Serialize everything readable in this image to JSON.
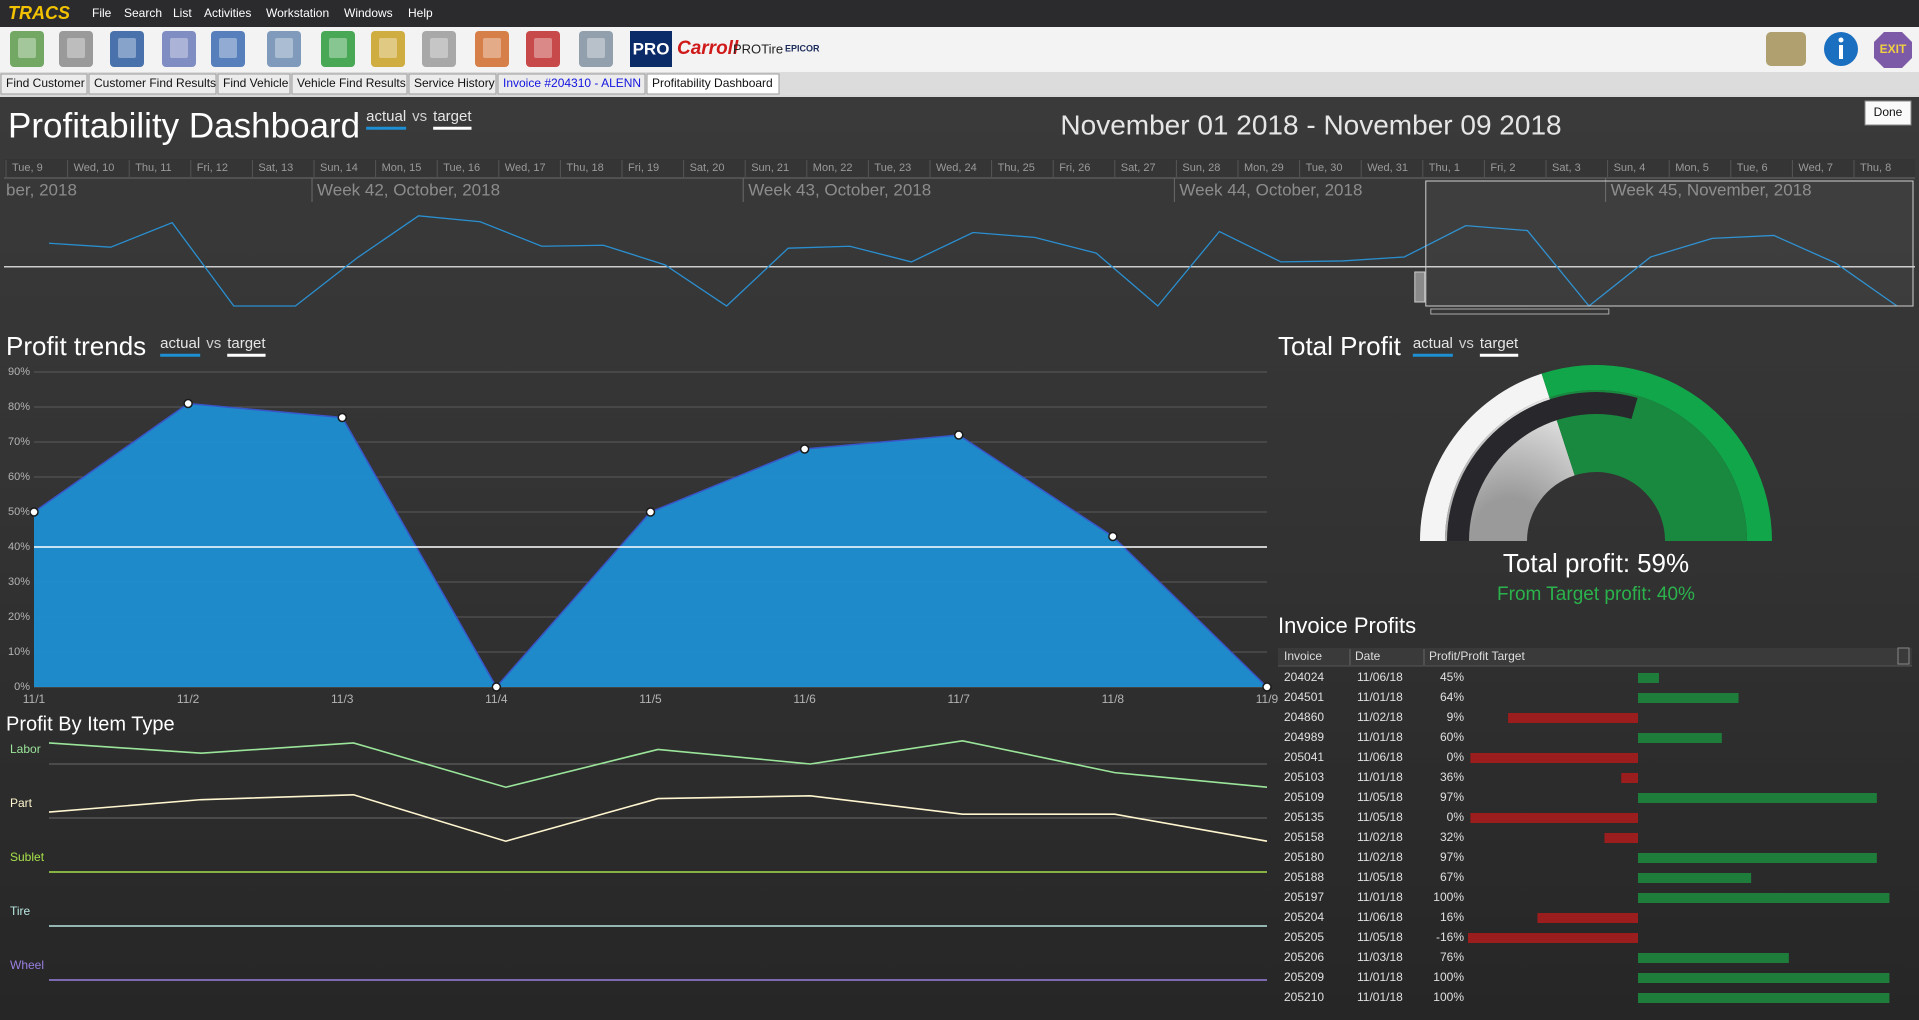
{
  "app": {
    "logo": "TRACS",
    "menu": [
      "File",
      "Search",
      "List",
      "Activities",
      "Workstation",
      "Windows",
      "Help"
    ],
    "toolbar_brands": [
      "PRO",
      "Carroll",
      "PROTire",
      "EPICOR"
    ],
    "exit": "EXIT",
    "tabs": [
      "Find Customer",
      "Customer Find Results",
      "Find Vehicle",
      "Vehicle Find Results",
      "Service History",
      "Invoice #204310 - ALENN",
      "Profitability Dashboard"
    ],
    "done": "Done"
  },
  "dashboard": {
    "title": "Profitability Dashboard",
    "legend": {
      "actual": "actual",
      "vs": "vs",
      "target": "target"
    },
    "date_range": "November 01 2018 - November 09 2018"
  },
  "timeline": {
    "days": [
      "Tue, 9",
      "Wed, 10",
      "Thu, 11",
      "Fri, 12",
      "Sat, 13",
      "Sun, 14",
      "Mon, 15",
      "Tue, 16",
      "Wed, 17",
      "Thu, 18",
      "Fri, 19",
      "Sat, 20",
      "Sun, 21",
      "Mon, 22",
      "Tue, 23",
      "Wed, 24",
      "Thu, 25",
      "Fri, 26",
      "Sat, 27",
      "Sun, 28",
      "Mon, 29",
      "Tue, 30",
      "Wed, 31",
      "Thu, 1",
      "Fri, 2",
      "Sat, 3",
      "Sun, 4",
      "Mon, 5",
      "Tue, 6",
      "Wed, 7",
      "Thu, 8"
    ],
    "weeks": [
      "ber, 2018",
      "Week 42, October, 2018",
      "Week 43, October, 2018",
      "Week 44, October, 2018",
      "Week 45, November, 2018"
    ],
    "values": [
      64,
      60,
      85,
      0,
      0,
      49,
      92,
      86,
      61,
      62,
      42,
      0,
      59,
      61,
      45,
      75,
      70,
      54,
      0,
      76,
      45,
      46,
      50,
      82,
      77,
      0,
      50,
      69,
      72,
      44,
      0
    ],
    "target": 40,
    "ylim": [
      0,
      100
    ],
    "color": "#2a8fd0"
  },
  "profit_trends": {
    "type": "area",
    "title": "Profit trends",
    "categories": [
      "11/1",
      "11/2",
      "11/3",
      "11/4",
      "11/5",
      "11/6",
      "11/7",
      "11/8",
      "11/9"
    ],
    "values": [
      50,
      81,
      77,
      0,
      50,
      68,
      72,
      43,
      0
    ],
    "target": 40,
    "ylim": [
      0,
      90
    ],
    "yticks": [
      {
        "value": 0,
        "label": "0%"
      },
      {
        "value": 10,
        "label": "10%"
      },
      {
        "value": 20,
        "label": "20%"
      },
      {
        "value": 30,
        "label": "30%"
      },
      {
        "value": 40,
        "label": "40%"
      },
      {
        "value": 50,
        "label": "50%"
      },
      {
        "value": 60,
        "label": "60%"
      },
      {
        "value": 70,
        "label": "70%"
      },
      {
        "value": 80,
        "label": "80%"
      },
      {
        "value": 90,
        "label": "90%"
      }
    ],
    "color": "#1e8fd2",
    "grid": true
  },
  "total_profit": {
    "type": "gauge",
    "title": "Total Profit",
    "label": "Total profit:",
    "value": 59,
    "value_label": "59%",
    "target_label": "From Target profit:",
    "target": 40,
    "target_value_label": "40%",
    "range": [
      0,
      100
    ]
  },
  "invoice_profits": {
    "title": "Invoice Profits",
    "columns": [
      "Invoice",
      "Date",
      "Profit/Profit Target"
    ],
    "rows": [
      {
        "invoice": "204024",
        "date": "11/06/18",
        "profit": 45,
        "profit_label": "45%"
      },
      {
        "invoice": "204501",
        "date": "11/01/18",
        "profit": 64,
        "profit_label": "64%"
      },
      {
        "invoice": "204860",
        "date": "11/02/18",
        "profit": 9,
        "profit_label": "9%"
      },
      {
        "invoice": "204989",
        "date": "11/01/18",
        "profit": 60,
        "profit_label": "60%"
      },
      {
        "invoice": "205041",
        "date": "11/06/18",
        "profit": 0,
        "profit_label": "0%"
      },
      {
        "invoice": "205103",
        "date": "11/01/18",
        "profit": 36,
        "profit_label": "36%"
      },
      {
        "invoice": "205109",
        "date": "11/05/18",
        "profit": 97,
        "profit_label": "97%"
      },
      {
        "invoice": "205135",
        "date": "11/05/18",
        "profit": 0,
        "profit_label": "0%"
      },
      {
        "invoice": "205158",
        "date": "11/02/18",
        "profit": 32,
        "profit_label": "32%"
      },
      {
        "invoice": "205180",
        "date": "11/02/18",
        "profit": 97,
        "profit_label": "97%"
      },
      {
        "invoice": "205188",
        "date": "11/05/18",
        "profit": 67,
        "profit_label": "67%"
      },
      {
        "invoice": "205197",
        "date": "11/01/18",
        "profit": 100,
        "profit_label": "100%"
      },
      {
        "invoice": "205204",
        "date": "11/06/18",
        "profit": 16,
        "profit_label": "16%"
      },
      {
        "invoice": "205205",
        "date": "11/05/18",
        "profit": -16,
        "profit_label": "-16%"
      },
      {
        "invoice": "205206",
        "date": "11/03/18",
        "profit": 76,
        "profit_label": "76%"
      },
      {
        "invoice": "205209",
        "date": "11/01/18",
        "profit": 100,
        "profit_label": "100%"
      },
      {
        "invoice": "205210",
        "date": "11/01/18",
        "profit": 100,
        "profit_label": "100%"
      }
    ]
  },
  "profit_by_item_type": {
    "type": "line",
    "title": "Profit By Item Type",
    "ylim": [
      -100,
      100
    ],
    "series": [
      {
        "name": "Labor",
        "color": "#9be59b",
        "values": [
          39,
          20,
          39,
          -43,
          27,
          0,
          43,
          -16,
          -43
        ]
      },
      {
        "name": "Part",
        "color": "#fff6d0",
        "values": [
          11,
          34,
          43,
          -43,
          36,
          41,
          7,
          7,
          -43
        ]
      },
      {
        "name": "Sublet",
        "color": "#a6e04a",
        "values": [
          0,
          0,
          0,
          0,
          0,
          0,
          0,
          0,
          0
        ]
      },
      {
        "name": "Tire",
        "color": "#b8e6df",
        "values": [
          0,
          0,
          0,
          0,
          0,
          0,
          0,
          0,
          0
        ]
      },
      {
        "name": "Wheel",
        "color": "#9a7fe0",
        "values": [
          0,
          0,
          0,
          0,
          0,
          0,
          0,
          0,
          0
        ]
      }
    ]
  }
}
